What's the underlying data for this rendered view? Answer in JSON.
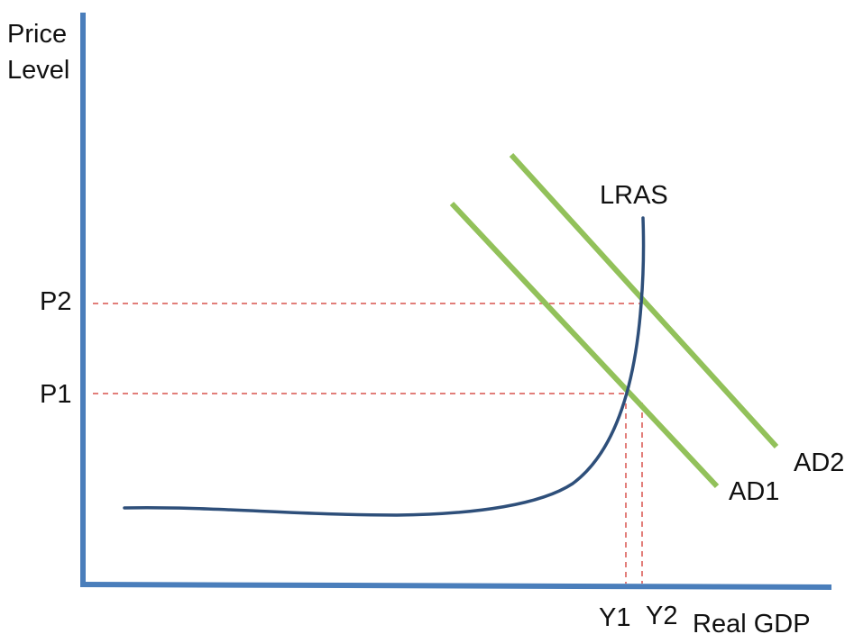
{
  "axes": {
    "y_title_line1": "Price",
    "y_title_line2": "Level",
    "x_title": "Real GDP",
    "axis_color": "#4a7ebb"
  },
  "price_levels": [
    {
      "label": "P1"
    },
    {
      "label": "P2"
    }
  ],
  "outputs": [
    {
      "label": "Y1"
    },
    {
      "label": "Y2"
    }
  ],
  "curves": {
    "lras": {
      "label": "LRAS",
      "color": "#2e4f7a"
    },
    "ad1": {
      "label": "AD1",
      "color": "#92c15a"
    },
    "ad2": {
      "label": "AD2",
      "color": "#92c15a"
    }
  },
  "guide_color": "#d9534f"
}
